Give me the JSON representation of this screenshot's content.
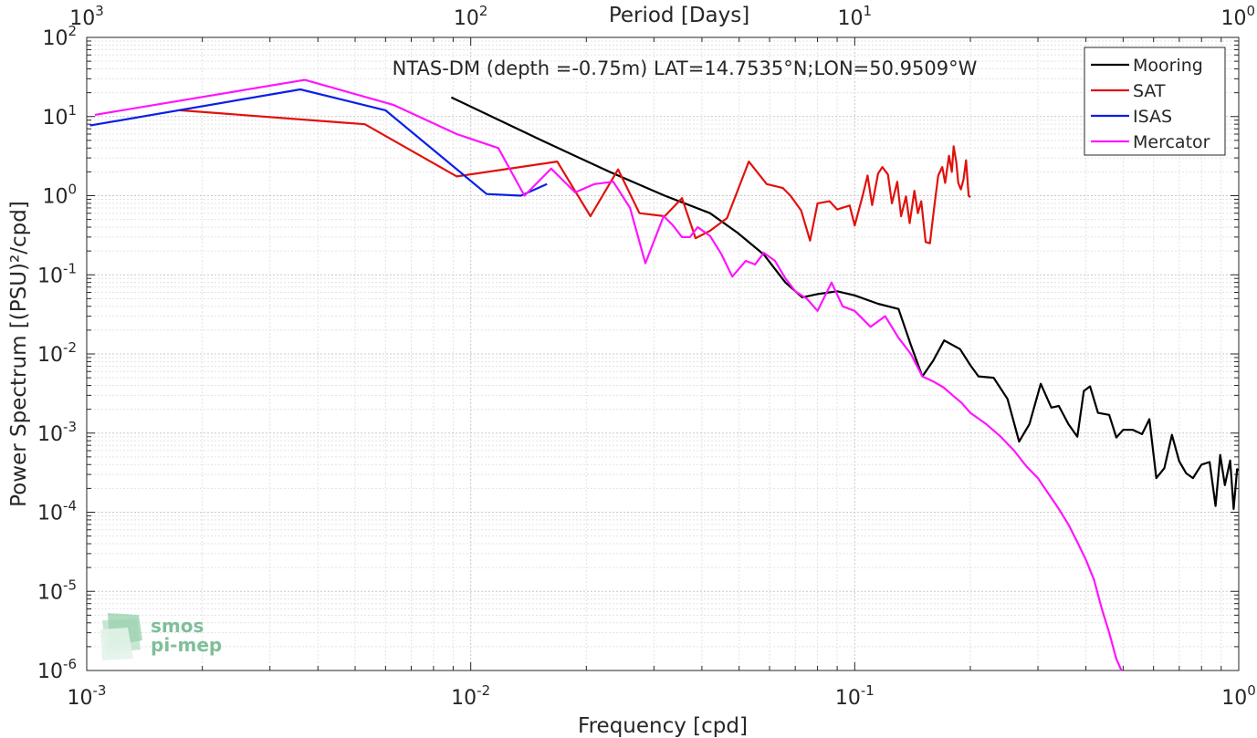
{
  "chart_data": {
    "type": "line",
    "title": "NTAS-DM (depth =-0.75m) LAT=14.7535°N;LON=50.9509°W",
    "xlabel": "Frequency [cpd]",
    "ylabel": "Power Spectrum [(PSU)²/cpd]",
    "x2label": "Period [Days]",
    "xscale": "log",
    "yscale": "log",
    "xlim": [
      0.001,
      1
    ],
    "ylim": [
      1e-06,
      100
    ],
    "grid": true,
    "minor_grid": true,
    "legend_position": "top-right",
    "x_ticks": [
      {
        "base": "10",
        "exp": "-3",
        "value": 0.001
      },
      {
        "base": "10",
        "exp": "-2",
        "value": 0.01
      },
      {
        "base": "10",
        "exp": "-1",
        "value": 0.1
      },
      {
        "base": "10",
        "exp": "0",
        "value": 1
      }
    ],
    "x2_ticks": [
      {
        "base": "10",
        "exp": "3",
        "value": 0.001
      },
      {
        "base": "10",
        "exp": "2",
        "value": 0.01
      },
      {
        "base": "10",
        "exp": "1",
        "value": 0.1
      },
      {
        "base": "10",
        "exp": "0",
        "value": 1
      }
    ],
    "y_ticks": [
      {
        "base": "10",
        "exp": "-6",
        "value": 1e-06
      },
      {
        "base": "10",
        "exp": "-5",
        "value": 1e-05
      },
      {
        "base": "10",
        "exp": "-4",
        "value": 0.0001
      },
      {
        "base": "10",
        "exp": "-3",
        "value": 0.001
      },
      {
        "base": "10",
        "exp": "-2",
        "value": 0.01
      },
      {
        "base": "10",
        "exp": "-1",
        "value": 0.1
      },
      {
        "base": "10",
        "exp": "0",
        "value": 1
      },
      {
        "base": "10",
        "exp": "1",
        "value": 10
      },
      {
        "base": "10",
        "exp": "2",
        "value": 100
      }
    ],
    "series": [
      {
        "name": "Mooring",
        "color": "#000000",
        "points": [
          [
            0.0089,
            17.5
          ],
          [
            0.0153,
            5.0
          ],
          [
            0.023,
            2.0
          ],
          [
            0.032,
            1.0
          ],
          [
            0.042,
            0.6
          ],
          [
            0.0495,
            0.34
          ],
          [
            0.058,
            0.18
          ],
          [
            0.066,
            0.08
          ],
          [
            0.073,
            0.052
          ],
          [
            0.08,
            0.057
          ],
          [
            0.09,
            0.062
          ],
          [
            0.1,
            0.055
          ],
          [
            0.115,
            0.043
          ],
          [
            0.13,
            0.037
          ],
          [
            0.14,
            0.013
          ],
          [
            0.15,
            0.0052
          ],
          [
            0.16,
            0.0082
          ],
          [
            0.171,
            0.0148
          ],
          [
            0.188,
            0.0115
          ],
          [
            0.2,
            0.0072
          ],
          [
            0.21,
            0.0052
          ],
          [
            0.23,
            0.005
          ],
          [
            0.25,
            0.0027
          ],
          [
            0.268,
            0.00078
          ],
          [
            0.285,
            0.0013
          ],
          [
            0.305,
            0.0042
          ],
          [
            0.325,
            0.0021
          ],
          [
            0.34,
            0.0022
          ],
          [
            0.36,
            0.0013
          ],
          [
            0.38,
            0.0009
          ],
          [
            0.395,
            0.0034
          ],
          [
            0.41,
            0.0039
          ],
          [
            0.43,
            0.0018
          ],
          [
            0.46,
            0.0017
          ],
          [
            0.48,
            0.00088
          ],
          [
            0.5,
            0.0011
          ],
          [
            0.53,
            0.0011
          ],
          [
            0.56,
            0.00097
          ],
          [
            0.585,
            0.0015
          ],
          [
            0.61,
            0.00027
          ],
          [
            0.64,
            0.00036
          ],
          [
            0.67,
            0.00095
          ],
          [
            0.7,
            0.00044
          ],
          [
            0.73,
            0.00031
          ],
          [
            0.76,
            0.00027
          ],
          [
            0.8,
            0.0004
          ],
          [
            0.84,
            0.00043
          ],
          [
            0.87,
            0.00012
          ],
          [
            0.895,
            0.00053
          ],
          [
            0.92,
            0.00022
          ],
          [
            0.95,
            0.00045
          ],
          [
            0.97,
            0.00011
          ],
          [
            0.99,
            0.00035
          ],
          [
            1.0,
            0.00034
          ]
        ]
      },
      {
        "name": "SAT",
        "color": "#e0120e",
        "points": [
          [
            0.00175,
            12.0
          ],
          [
            0.0053,
            8.0
          ],
          [
            0.0092,
            1.75
          ],
          [
            0.0168,
            2.7
          ],
          [
            0.0205,
            0.55
          ],
          [
            0.0242,
            2.15
          ],
          [
            0.0275,
            0.6
          ],
          [
            0.032,
            0.55
          ],
          [
            0.0355,
            0.93
          ],
          [
            0.0385,
            0.29
          ],
          [
            0.042,
            0.36
          ],
          [
            0.0465,
            0.52
          ],
          [
            0.053,
            2.7
          ],
          [
            0.059,
            1.4
          ],
          [
            0.065,
            1.25
          ],
          [
            0.068,
            1.0
          ],
          [
            0.0725,
            0.65
          ],
          [
            0.0765,
            0.27
          ],
          [
            0.08,
            0.8
          ],
          [
            0.086,
            0.85
          ],
          [
            0.09,
            0.67
          ],
          [
            0.097,
            0.75
          ],
          [
            0.1,
            0.42
          ],
          [
            0.105,
            1.02
          ],
          [
            0.108,
            1.8
          ],
          [
            0.111,
            0.76
          ],
          [
            0.115,
            1.9
          ],
          [
            0.118,
            2.3
          ],
          [
            0.122,
            1.85
          ],
          [
            0.125,
            0.8
          ],
          [
            0.129,
            1.5
          ],
          [
            0.132,
            0.55
          ],
          [
            0.136,
            0.98
          ],
          [
            0.139,
            0.45
          ],
          [
            0.143,
            1.15
          ],
          [
            0.146,
            0.6
          ],
          [
            0.149,
            0.85
          ],
          [
            0.153,
            0.26
          ],
          [
            0.157,
            0.25
          ],
          [
            0.161,
            0.7
          ],
          [
            0.165,
            1.8
          ],
          [
            0.169,
            2.3
          ],
          [
            0.172,
            1.45
          ],
          [
            0.176,
            3.2
          ],
          [
            0.179,
            2.0
          ],
          [
            0.181,
            4.2
          ],
          [
            0.184,
            2.6
          ],
          [
            0.186,
            1.45
          ],
          [
            0.189,
            1.2
          ],
          [
            0.192,
            1.6
          ],
          [
            0.195,
            2.8
          ],
          [
            0.198,
            1.0
          ],
          [
            0.2,
            0.95
          ]
        ]
      },
      {
        "name": "ISAS",
        "color": "#0a1fe6",
        "points": [
          [
            0.00102,
            7.7
          ],
          [
            0.0036,
            22.0
          ],
          [
            0.006,
            12.0
          ],
          [
            0.011,
            1.05
          ],
          [
            0.0135,
            1.0
          ],
          [
            0.0158,
            1.4
          ]
        ]
      },
      {
        "name": "Mercator",
        "color": "#ff14ff",
        "points": [
          [
            0.00105,
            10.5
          ],
          [
            0.0037,
            29.0
          ],
          [
            0.0063,
            14.0
          ],
          [
            0.0092,
            6.0
          ],
          [
            0.0118,
            4.0
          ],
          [
            0.0138,
            1.0
          ],
          [
            0.0162,
            2.2
          ],
          [
            0.0187,
            1.1
          ],
          [
            0.021,
            1.4
          ],
          [
            0.0235,
            1.5
          ],
          [
            0.026,
            0.7
          ],
          [
            0.0285,
            0.14
          ],
          [
            0.0318,
            0.55
          ],
          [
            0.0335,
            0.43
          ],
          [
            0.0355,
            0.3
          ],
          [
            0.0372,
            0.3
          ],
          [
            0.039,
            0.4
          ],
          [
            0.042,
            0.31
          ],
          [
            0.045,
            0.18
          ],
          [
            0.048,
            0.095
          ],
          [
            0.052,
            0.15
          ],
          [
            0.055,
            0.135
          ],
          [
            0.058,
            0.19
          ],
          [
            0.062,
            0.15
          ],
          [
            0.066,
            0.09
          ],
          [
            0.07,
            0.062
          ],
          [
            0.075,
            0.05
          ],
          [
            0.08,
            0.035
          ],
          [
            0.087,
            0.08
          ],
          [
            0.093,
            0.04
          ],
          [
            0.1,
            0.035
          ],
          [
            0.11,
            0.022
          ],
          [
            0.12,
            0.03
          ],
          [
            0.13,
            0.016
          ],
          [
            0.14,
            0.01
          ],
          [
            0.15,
            0.0052
          ],
          [
            0.16,
            0.0045
          ],
          [
            0.17,
            0.0038
          ],
          [
            0.18,
            0.003
          ],
          [
            0.19,
            0.0024
          ],
          [
            0.2,
            0.0018
          ],
          [
            0.22,
            0.0013
          ],
          [
            0.24,
            0.0009
          ],
          [
            0.26,
            0.0006
          ],
          [
            0.28,
            0.00038
          ],
          [
            0.3,
            0.00027
          ],
          [
            0.32,
            0.00017
          ],
          [
            0.34,
            0.00011
          ],
          [
            0.36,
            7e-05
          ],
          [
            0.38,
            4.2e-05
          ],
          [
            0.4,
            2.5e-05
          ],
          [
            0.42,
            1.4e-05
          ],
          [
            0.44,
            6e-06
          ],
          [
            0.46,
            3e-06
          ],
          [
            0.48,
            1.4e-06
          ],
          [
            0.495,
            1e-06
          ]
        ]
      }
    ],
    "legend": [
      "Mooring",
      "SAT",
      "ISAS",
      "Mercator"
    ]
  },
  "logo": {
    "line1": "smos",
    "line2": "pi-mep"
  }
}
